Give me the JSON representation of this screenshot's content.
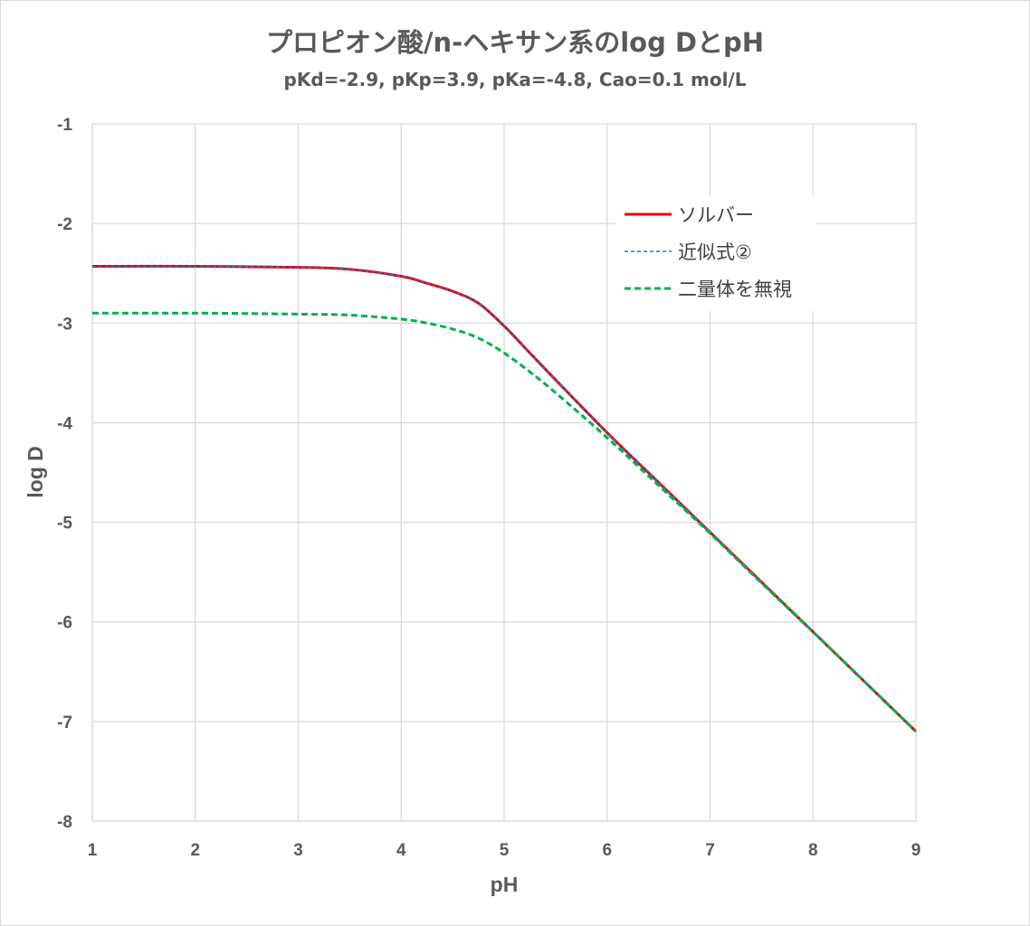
{
  "chart_data": {
    "type": "line",
    "title": "プロピオン酸/n-ヘキサン系のlog DとpH",
    "subtitle": "pKd=-2.9, pKp=3.9, pKa=-4.8, Cao=0.1 mol/L",
    "xlabel": "pH",
    "ylabel": "log D",
    "xlim": [
      1,
      9
    ],
    "ylim": [
      -8,
      -1
    ],
    "xticks": [
      "1",
      "2",
      "3",
      "4",
      "5",
      "6",
      "7",
      "8",
      "9"
    ],
    "yticks": [
      "-1",
      "-2",
      "-3",
      "-4",
      "-5",
      "-6",
      "-7",
      "-8"
    ],
    "grid": true,
    "legend_position": "top-right",
    "series": [
      {
        "name": "ソルバー",
        "color": "#e3000f",
        "dash": "solid",
        "x": [
          1,
          2,
          3,
          3.5,
          4,
          4.25,
          4.5,
          4.75,
          5,
          5.25,
          5.5,
          6,
          6.5,
          7,
          7.5,
          8,
          8.5,
          9
        ],
        "y": [
          -2.43,
          -2.43,
          -2.44,
          -2.46,
          -2.53,
          -2.6,
          -2.68,
          -2.8,
          -3.03,
          -3.3,
          -3.57,
          -4.1,
          -4.6,
          -5.1,
          -5.6,
          -6.1,
          -6.6,
          -7.1
        ]
      },
      {
        "name": "近似式②",
        "color": "#2e75b6",
        "dash": "fine",
        "x": [
          1,
          2,
          3,
          3.5,
          4,
          4.25,
          4.5,
          4.75,
          5,
          5.25,
          5.5,
          6,
          6.5,
          7,
          7.5,
          8,
          8.5,
          9
        ],
        "y": [
          -2.43,
          -2.43,
          -2.44,
          -2.46,
          -2.53,
          -2.6,
          -2.68,
          -2.8,
          -3.03,
          -3.3,
          -3.57,
          -4.1,
          -4.6,
          -5.1,
          -5.6,
          -6.1,
          -6.6,
          -7.1
        ]
      },
      {
        "name": "二量体を無視",
        "color": "#00b050",
        "dash": "dashed",
        "x": [
          1,
          2,
          3,
          3.5,
          4,
          4.25,
          4.5,
          4.75,
          5,
          5.25,
          5.5,
          6,
          6.5,
          7,
          7.5,
          8,
          8.5,
          9
        ],
        "y": [
          -2.9,
          -2.9,
          -2.91,
          -2.92,
          -2.96,
          -3.0,
          -3.06,
          -3.15,
          -3.3,
          -3.49,
          -3.7,
          -4.15,
          -4.63,
          -5.11,
          -5.61,
          -6.1,
          -6.6,
          -7.1
        ]
      }
    ]
  }
}
